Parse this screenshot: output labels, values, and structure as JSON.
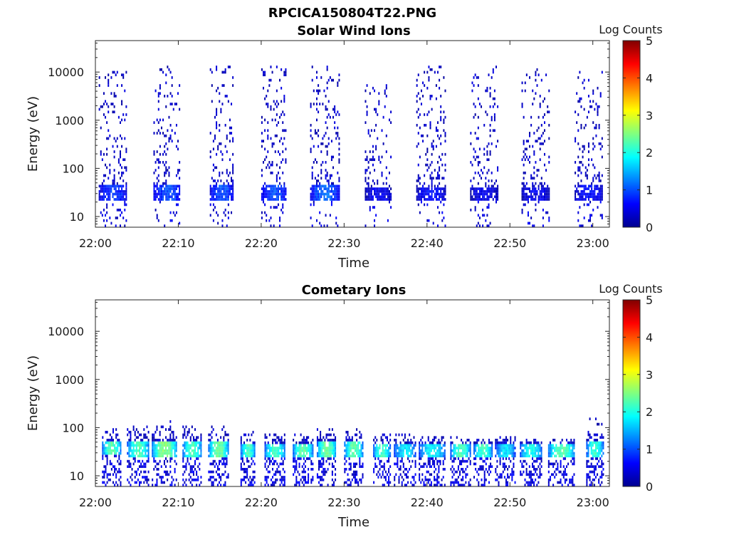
{
  "figure": {
    "title": "RPCICA150804T22.PNG"
  },
  "chart_data": [
    {
      "type": "heatmap",
      "title": "Solar Wind Ions",
      "xlabel": "Time",
      "ylabel": "Energy (eV)",
      "x_ticks": [
        "22:00",
        "22:10",
        "22:20",
        "22:30",
        "22:40",
        "22:50",
        "23:00"
      ],
      "x_range_minutes": [
        0,
        62
      ],
      "y_scale": "log",
      "y_ticks": [
        "10",
        "100",
        "1000",
        "10000"
      ],
      "y_range": [
        6,
        45000
      ],
      "colorbar": {
        "label": "Log Counts",
        "range": [
          0,
          5
        ],
        "ticks": [
          "0",
          "1",
          "2",
          "3",
          "4",
          "5"
        ],
        "colormap": "jet"
      },
      "data_description_note_free": true,
      "sweeps": [
        {
          "start_min": 0.4,
          "end_min": 3.8,
          "core_energy": [
            20,
            45
          ],
          "core_log_counts": 0.8,
          "max_energy": 12000
        },
        {
          "start_min": 7.0,
          "end_min": 10.2,
          "core_energy": [
            20,
            45
          ],
          "core_log_counts": 0.9,
          "max_energy": 13000
        },
        {
          "start_min": 13.8,
          "end_min": 16.5,
          "core_energy": [
            20,
            45
          ],
          "core_log_counts": 0.9,
          "max_energy": 12000
        },
        {
          "start_min": 20.0,
          "end_min": 23.0,
          "core_energy": [
            20,
            45
          ],
          "core_log_counts": 0.9,
          "max_energy": 12000
        },
        {
          "start_min": 25.9,
          "end_min": 29.4,
          "core_energy": [
            20,
            45
          ],
          "core_log_counts": 1.0,
          "max_energy": 12000
        },
        {
          "start_min": 32.5,
          "end_min": 35.6,
          "core_energy": [
            20,
            40
          ],
          "core_log_counts": 0.5,
          "max_energy": 5500
        },
        {
          "start_min": 38.7,
          "end_min": 42.2,
          "core_energy": [
            20,
            40
          ],
          "core_log_counts": 0.6,
          "max_energy": 13000
        },
        {
          "start_min": 45.2,
          "end_min": 48.5,
          "core_energy": [
            20,
            40
          ],
          "core_log_counts": 0.5,
          "max_energy": 13000
        },
        {
          "start_min": 51.4,
          "end_min": 54.7,
          "core_energy": [
            20,
            40
          ],
          "core_log_counts": 0.5,
          "max_energy": 11000
        },
        {
          "start_min": 57.8,
          "end_min": 61.2,
          "core_energy": [
            20,
            45
          ],
          "core_log_counts": 0.6,
          "max_energy": 11000
        }
      ]
    },
    {
      "type": "heatmap",
      "title": "Cometary Ions",
      "xlabel": "Time",
      "ylabel": "Energy (eV)",
      "x_ticks": [
        "22:00",
        "22:10",
        "22:20",
        "22:30",
        "22:40",
        "22:50",
        "23:00"
      ],
      "x_range_minutes": [
        0,
        62
      ],
      "y_scale": "log",
      "y_ticks": [
        "10",
        "100",
        "1000",
        "10000"
      ],
      "y_range": [
        6,
        45000
      ],
      "colorbar": {
        "label": "Log Counts",
        "range": [
          0,
          5
        ],
        "ticks": [
          "0",
          "1",
          "2",
          "3",
          "4",
          "5"
        ],
        "colormap": "jet"
      },
      "sweeps": [
        {
          "start_min": 0.8,
          "end_min": 3.0,
          "core_energy": [
            25,
            50
          ],
          "core_log_counts": 2.1,
          "max_energy": 90
        },
        {
          "start_min": 3.8,
          "end_min": 6.4,
          "core_energy": [
            22,
            50
          ],
          "core_log_counts": 2.0,
          "max_energy": 100
        },
        {
          "start_min": 6.8,
          "end_min": 9.8,
          "core_energy": [
            22,
            50
          ],
          "core_log_counts": 2.3,
          "max_energy": 140
        },
        {
          "start_min": 10.5,
          "end_min": 12.8,
          "core_energy": [
            22,
            50
          ],
          "core_log_counts": 2.0,
          "max_energy": 130
        },
        {
          "start_min": 13.6,
          "end_min": 16.0,
          "core_energy": [
            22,
            50
          ],
          "core_log_counts": 2.2,
          "max_energy": 100
        },
        {
          "start_min": 17.5,
          "end_min": 19.2,
          "core_energy": [
            22,
            45
          ],
          "core_log_counts": 2.0,
          "max_energy": 90
        },
        {
          "start_min": 20.4,
          "end_min": 22.8,
          "core_energy": [
            22,
            45
          ],
          "core_log_counts": 2.0,
          "max_energy": 70
        },
        {
          "start_min": 23.8,
          "end_min": 26.2,
          "core_energy": [
            22,
            45
          ],
          "core_log_counts": 2.1,
          "max_energy": 70
        },
        {
          "start_min": 26.7,
          "end_min": 29.0,
          "core_energy": [
            22,
            50
          ],
          "core_log_counts": 2.2,
          "max_energy": 90
        },
        {
          "start_min": 30.0,
          "end_min": 32.2,
          "core_energy": [
            22,
            50
          ],
          "core_log_counts": 2.1,
          "max_energy": 90
        },
        {
          "start_min": 33.5,
          "end_min": 35.5,
          "core_energy": [
            22,
            45
          ],
          "core_log_counts": 2.0,
          "max_energy": 70
        },
        {
          "start_min": 36.0,
          "end_min": 38.6,
          "core_energy": [
            22,
            45
          ],
          "core_log_counts": 1.6,
          "max_energy": 70
        },
        {
          "start_min": 39.0,
          "end_min": 42.2,
          "core_energy": [
            22,
            45
          ],
          "core_log_counts": 1.7,
          "max_energy": 60
        },
        {
          "start_min": 42.8,
          "end_min": 45.2,
          "core_energy": [
            22,
            45
          ],
          "core_log_counts": 2.0,
          "max_energy": 60
        },
        {
          "start_min": 45.6,
          "end_min": 47.8,
          "core_energy": [
            22,
            45
          ],
          "core_log_counts": 2.0,
          "max_energy": 55
        },
        {
          "start_min": 48.2,
          "end_min": 50.6,
          "core_energy": [
            22,
            45
          ],
          "core_log_counts": 1.6,
          "max_energy": 65
        },
        {
          "start_min": 51.2,
          "end_min": 53.8,
          "core_energy": [
            22,
            45
          ],
          "core_log_counts": 1.8,
          "max_energy": 55
        },
        {
          "start_min": 54.6,
          "end_min": 57.8,
          "core_energy": [
            22,
            45
          ],
          "core_log_counts": 2.1,
          "max_energy": 55
        },
        {
          "start_min": 59.2,
          "end_min": 61.2,
          "core_energy": [
            22,
            50
          ],
          "core_log_counts": 1.9,
          "max_energy": 150
        }
      ]
    }
  ]
}
